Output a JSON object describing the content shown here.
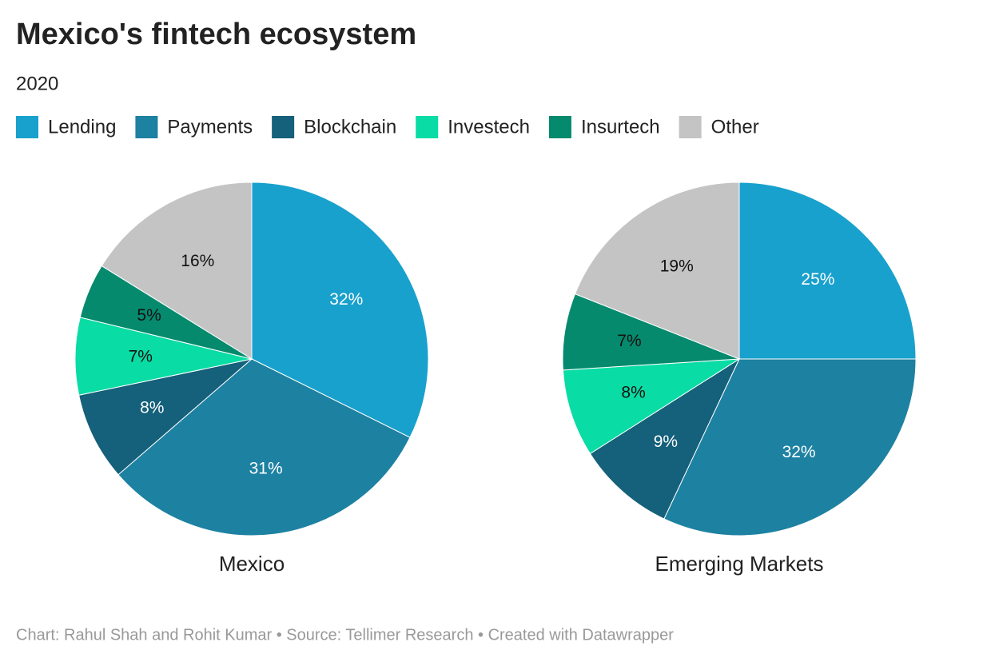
{
  "title": "Mexico's fintech ecosystem",
  "subtitle": "2020",
  "footer": "Chart: Rahul Shah and Rohit Kumar • Source: Tellimer Research • Created with Datawrapper",
  "chart_data": [
    {
      "type": "pie",
      "title": "Mexico",
      "categories": [
        "Lending",
        "Payments",
        "Blockchain",
        "Investech",
        "Insurtech",
        "Other"
      ],
      "colors": [
        "#18a1cd",
        "#1d81a2",
        "#15607a",
        "#09dca4",
        "#058a6e",
        "#c4c4c4"
      ],
      "values": [
        32,
        31,
        8,
        7,
        5,
        16
      ],
      "value_labels": [
        "32%",
        "31%",
        "8%",
        "7%",
        "5%",
        "16%"
      ]
    },
    {
      "type": "pie",
      "title": "Emerging Markets",
      "categories": [
        "Lending",
        "Payments",
        "Blockchain",
        "Investech",
        "Insurtech",
        "Other"
      ],
      "colors": [
        "#18a1cd",
        "#1d81a2",
        "#15607a",
        "#09dca4",
        "#058a6e",
        "#c4c4c4"
      ],
      "values": [
        25,
        32,
        9,
        8,
        7,
        19
      ],
      "value_labels": [
        "25%",
        "32%",
        "9%",
        "8%",
        "7%",
        "19%"
      ]
    }
  ]
}
